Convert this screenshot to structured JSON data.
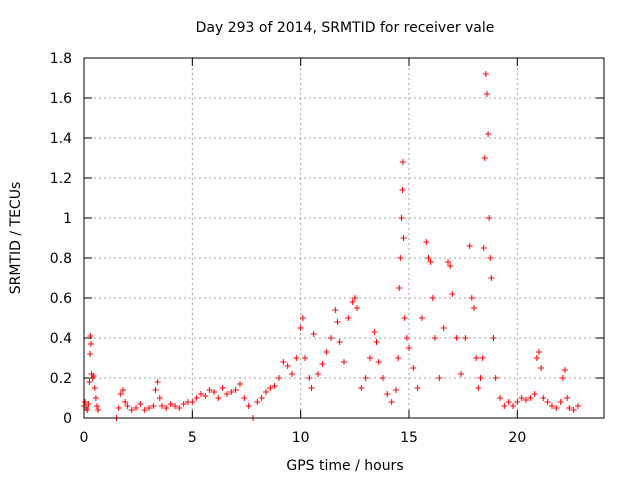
{
  "chart_data": {
    "type": "scatter",
    "title": "Day 293 of 2014, SRMTID for receiver vale",
    "xlabel": "GPS time / hours",
    "ylabel": "SRMTID / TECUs",
    "xlim": [
      0,
      24
    ],
    "ylim": [
      0,
      1.8
    ],
    "xticks": [
      0,
      5,
      10,
      15,
      20
    ],
    "yticks": [
      0,
      0.2,
      0.4,
      0.6,
      0.8,
      1,
      1.2,
      1.4,
      1.6,
      1.8
    ],
    "xtick_labels": [
      "0",
      "5",
      "10",
      "15",
      "20"
    ],
    "ytick_labels": [
      "0",
      "0.2",
      "0.4",
      "0.6",
      "0.8",
      "1",
      "1.2",
      "1.4",
      "1.6",
      "1.8"
    ],
    "grid": true,
    "marker": "+",
    "color": "#ff0000",
    "series": [
      {
        "name": "SRMTID",
        "points": [
          [
            0.0,
            0.06
          ],
          [
            0.05,
            0.08
          ],
          [
            0.1,
            0.05
          ],
          [
            0.15,
            0.04
          ],
          [
            0.2,
            0.07
          ],
          [
            0.25,
            0.18
          ],
          [
            0.28,
            0.32
          ],
          [
            0.3,
            0.41
          ],
          [
            0.32,
            0.37
          ],
          [
            0.35,
            0.22
          ],
          [
            0.4,
            0.2
          ],
          [
            0.45,
            0.21
          ],
          [
            0.5,
            0.15
          ],
          [
            0.55,
            0.1
          ],
          [
            0.6,
            0.06
          ],
          [
            0.65,
            0.04
          ],
          [
            1.5,
            0.0
          ],
          [
            1.6,
            0.05
          ],
          [
            1.7,
            0.12
          ],
          [
            1.8,
            0.14
          ],
          [
            1.9,
            0.08
          ],
          [
            2.0,
            0.06
          ],
          [
            2.2,
            0.04
          ],
          [
            2.4,
            0.05
          ],
          [
            2.6,
            0.07
          ],
          [
            2.8,
            0.04
          ],
          [
            3.0,
            0.05
          ],
          [
            3.2,
            0.06
          ],
          [
            3.3,
            0.14
          ],
          [
            3.4,
            0.18
          ],
          [
            3.5,
            0.1
          ],
          [
            3.6,
            0.06
          ],
          [
            3.8,
            0.05
          ],
          [
            4.0,
            0.07
          ],
          [
            4.2,
            0.06
          ],
          [
            4.4,
            0.05
          ],
          [
            4.6,
            0.07
          ],
          [
            4.8,
            0.08
          ],
          [
            5.0,
            0.08
          ],
          [
            5.2,
            0.1
          ],
          [
            5.4,
            0.12
          ],
          [
            5.6,
            0.11
          ],
          [
            5.8,
            0.14
          ],
          [
            6.0,
            0.13
          ],
          [
            6.2,
            0.1
          ],
          [
            6.4,
            0.15
          ],
          [
            6.6,
            0.12
          ],
          [
            6.8,
            0.13
          ],
          [
            7.0,
            0.14
          ],
          [
            7.2,
            0.17
          ],
          [
            7.4,
            0.1
          ],
          [
            7.6,
            0.06
          ],
          [
            7.8,
            0.0
          ],
          [
            8.0,
            0.08
          ],
          [
            8.2,
            0.1
          ],
          [
            8.4,
            0.13
          ],
          [
            8.6,
            0.15
          ],
          [
            8.8,
            0.16
          ],
          [
            9.0,
            0.2
          ],
          [
            9.2,
            0.28
          ],
          [
            9.4,
            0.26
          ],
          [
            9.6,
            0.22
          ],
          [
            9.8,
            0.3
          ],
          [
            10.0,
            0.45
          ],
          [
            10.1,
            0.5
          ],
          [
            10.2,
            0.3
          ],
          [
            10.4,
            0.2
          ],
          [
            10.5,
            0.15
          ],
          [
            10.6,
            0.42
          ],
          [
            10.8,
            0.22
          ],
          [
            11.0,
            0.27
          ],
          [
            11.2,
            0.33
          ],
          [
            11.4,
            0.4
          ],
          [
            11.6,
            0.54
          ],
          [
            11.7,
            0.48
          ],
          [
            11.8,
            0.38
          ],
          [
            12.0,
            0.28
          ],
          [
            12.2,
            0.5
          ],
          [
            12.4,
            0.58
          ],
          [
            12.5,
            0.6
          ],
          [
            12.6,
            0.55
          ],
          [
            12.8,
            0.15
          ],
          [
            13.0,
            0.2
          ],
          [
            13.2,
            0.3
          ],
          [
            13.4,
            0.43
          ],
          [
            13.5,
            0.38
          ],
          [
            13.6,
            0.28
          ],
          [
            13.8,
            0.2
          ],
          [
            14.0,
            0.12
          ],
          [
            14.2,
            0.08
          ],
          [
            14.4,
            0.14
          ],
          [
            14.5,
            0.3
          ],
          [
            14.55,
            0.65
          ],
          [
            14.6,
            0.8
          ],
          [
            14.65,
            1.0
          ],
          [
            14.7,
            1.14
          ],
          [
            14.72,
            1.28
          ],
          [
            14.75,
            0.9
          ],
          [
            14.8,
            0.5
          ],
          [
            14.9,
            0.4
          ],
          [
            15.0,
            0.35
          ],
          [
            15.2,
            0.25
          ],
          [
            15.4,
            0.15
          ],
          [
            15.6,
            0.5
          ],
          [
            15.8,
            0.88
          ],
          [
            15.9,
            0.8
          ],
          [
            16.0,
            0.78
          ],
          [
            16.1,
            0.6
          ],
          [
            16.2,
            0.4
          ],
          [
            16.4,
            0.2
          ],
          [
            16.6,
            0.45
          ],
          [
            16.8,
            0.78
          ],
          [
            16.9,
            0.76
          ],
          [
            17.0,
            0.62
          ],
          [
            17.2,
            0.4
          ],
          [
            17.4,
            0.22
          ],
          [
            17.6,
            0.4
          ],
          [
            17.8,
            0.86
          ],
          [
            17.9,
            0.6
          ],
          [
            18.0,
            0.55
          ],
          [
            18.1,
            0.3
          ],
          [
            18.2,
            0.15
          ],
          [
            18.3,
            0.2
          ],
          [
            18.4,
            0.3
          ],
          [
            18.45,
            0.85
          ],
          [
            18.5,
            1.3
          ],
          [
            18.55,
            1.72
          ],
          [
            18.6,
            1.62
          ],
          [
            18.65,
            1.42
          ],
          [
            18.7,
            1.0
          ],
          [
            18.75,
            0.8
          ],
          [
            18.8,
            0.7
          ],
          [
            18.9,
            0.4
          ],
          [
            19.0,
            0.2
          ],
          [
            19.2,
            0.1
          ],
          [
            19.4,
            0.06
          ],
          [
            19.6,
            0.08
          ],
          [
            19.8,
            0.06
          ],
          [
            20.0,
            0.08
          ],
          [
            20.2,
            0.1
          ],
          [
            20.4,
            0.09
          ],
          [
            20.6,
            0.1
          ],
          [
            20.8,
            0.12
          ],
          [
            20.9,
            0.3
          ],
          [
            21.0,
            0.33
          ],
          [
            21.1,
            0.25
          ],
          [
            21.2,
            0.1
          ],
          [
            21.4,
            0.08
          ],
          [
            21.6,
            0.06
          ],
          [
            21.8,
            0.05
          ],
          [
            22.0,
            0.08
          ],
          [
            22.1,
            0.2
          ],
          [
            22.2,
            0.24
          ],
          [
            22.3,
            0.1
          ],
          [
            22.4,
            0.05
          ],
          [
            22.6,
            0.04
          ],
          [
            22.8,
            0.06
          ]
        ]
      }
    ]
  }
}
